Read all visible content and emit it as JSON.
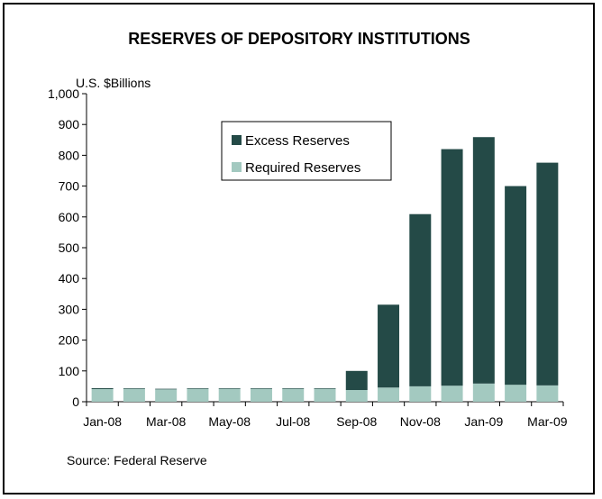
{
  "chart_data": {
    "type": "bar",
    "stacked": true,
    "title": "RESERVES OF DEPOSITORY INSTITUTIONS",
    "ylabel": "U.S. $Billions",
    "xlabel": "",
    "ylim": [
      0,
      1000
    ],
    "yticks": [
      "0",
      "100",
      "200",
      "300",
      "400",
      "500",
      "600",
      "700",
      "800",
      "900",
      "1,000"
    ],
    "categories": [
      "Jan-08",
      "Feb-08",
      "Mar-08",
      "Apr-08",
      "May-08",
      "Jun-08",
      "Jul-08",
      "Aug-08",
      "Sep-08",
      "Oct-08",
      "Nov-08",
      "Dec-08",
      "Jan-09",
      "Feb-09",
      "Mar-09"
    ],
    "xtick_labels": [
      "Jan-08",
      "Mar-08",
      "May-08",
      "Jul-08",
      "Sep-08",
      "Nov-08",
      "Jan-09",
      "Mar-09"
    ],
    "series": [
      {
        "name": "Required Reserves",
        "color": "#a3c9c0",
        "values": [
          41,
          42,
          40,
          42,
          42,
          42,
          42,
          42,
          38,
          46,
          50,
          52,
          59,
          55,
          53
        ]
      },
      {
        "name": "Excess Reserves",
        "color": "#244a47",
        "values": [
          3,
          2,
          2,
          2,
          2,
          2,
          2,
          2,
          62,
          269,
          559,
          768,
          800,
          645,
          723
        ]
      }
    ],
    "legend_position": "upper-center",
    "grid": false
  },
  "source_text": "Source: Federal Reserve"
}
